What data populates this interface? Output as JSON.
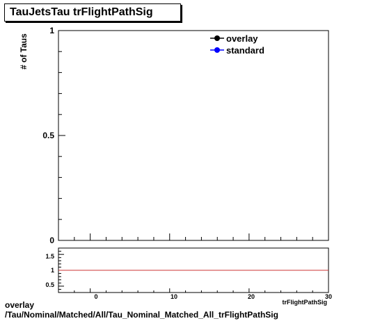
{
  "title": "TauJetsTau trFlightPathSig",
  "footer": {
    "line1": "overlay",
    "line2": "/Tau/Nominal/Matched/All/Tau_Nominal_Matched_All_trFlightPathSig"
  },
  "chart_data": [
    {
      "type": "line",
      "ylabel": "# of Taus",
      "xlabel": "",
      "xlim": [
        -4,
        30
      ],
      "ylim": [
        0,
        1
      ],
      "y_ticks": [
        "0",
        "0.5",
        "1"
      ],
      "legend": {
        "placement": "top-right",
        "entries": [
          "overlay",
          "standard"
        ]
      },
      "series": [
        {
          "name": "overlay",
          "color": "#000000",
          "values": []
        },
        {
          "name": "standard",
          "color": "#0000ff",
          "values": []
        }
      ]
    },
    {
      "type": "line",
      "xlabel": "trFlightPathSig",
      "xlim": [
        -4,
        30
      ],
      "ylim": [
        0.3,
        1.7
      ],
      "x_ticks": [
        "0",
        "10",
        "20",
        "30"
      ],
      "y_ticks": [
        "0.5",
        "1",
        "1.5"
      ],
      "series": [
        {
          "name": "",
          "color": "#cc3333",
          "x": [
            -4,
            30
          ],
          "values": [
            1,
            1
          ]
        }
      ]
    }
  ]
}
